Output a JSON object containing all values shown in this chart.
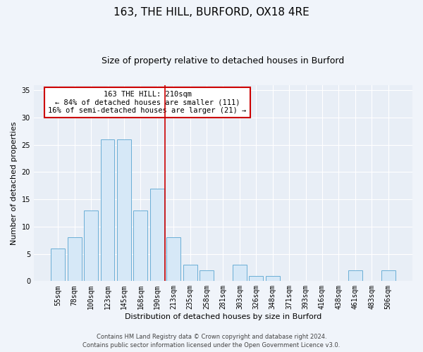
{
  "title1": "163, THE HILL, BURFORD, OX18 4RE",
  "title2": "Size of property relative to detached houses in Burford",
  "xlabel": "Distribution of detached houses by size in Burford",
  "ylabel": "Number of detached properties",
  "bar_labels": [
    "55sqm",
    "78sqm",
    "100sqm",
    "123sqm",
    "145sqm",
    "168sqm",
    "190sqm",
    "213sqm",
    "235sqm",
    "258sqm",
    "281sqm",
    "303sqm",
    "326sqm",
    "348sqm",
    "371sqm",
    "393sqm",
    "416sqm",
    "438sqm",
    "461sqm",
    "483sqm",
    "506sqm"
  ],
  "bar_values": [
    6,
    8,
    13,
    26,
    26,
    13,
    17,
    8,
    3,
    2,
    0,
    3,
    1,
    1,
    0,
    0,
    0,
    0,
    2,
    0,
    2
  ],
  "bar_color": "#d6e8f7",
  "bar_edge_color": "#6aaed6",
  "vline_color": "#cc0000",
  "annotation_title": "163 THE HILL: 210sqm",
  "annotation_line1": "← 84% of detached houses are smaller (111)",
  "annotation_line2": "16% of semi-detached houses are larger (21) →",
  "annotation_box_color": "#ffffff",
  "annotation_box_edge": "#cc0000",
  "ylim": [
    0,
    36
  ],
  "yticks": [
    0,
    5,
    10,
    15,
    20,
    25,
    30,
    35
  ],
  "footer1": "Contains HM Land Registry data © Crown copyright and database right 2024.",
  "footer2": "Contains public sector information licensed under the Open Government Licence v3.0.",
  "bg_color": "#f0f4fa",
  "plot_bg_color": "#e8eef6",
  "title1_fontsize": 11,
  "title2_fontsize": 9,
  "xlabel_fontsize": 8,
  "ylabel_fontsize": 8,
  "tick_fontsize": 7,
  "footer_fontsize": 6,
  "annotation_fontsize": 7.5
}
